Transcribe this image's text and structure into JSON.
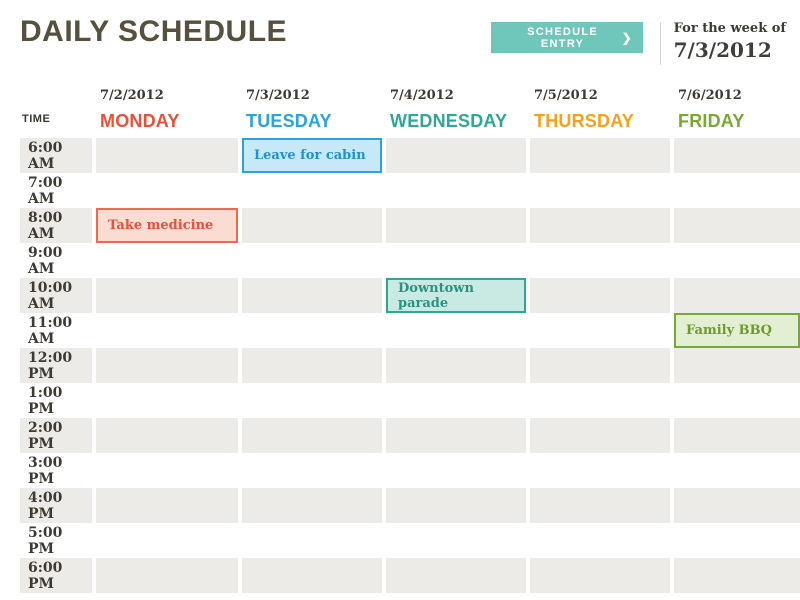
{
  "header": {
    "title": "DAILY SCHEDULE",
    "schedule_entry_button": "SCHEDULE ENTRY",
    "button_chevron": "❯",
    "week_of_label": "For the week of",
    "week_of_date": "7/3/2012"
  },
  "table": {
    "time_column_header": "TIME",
    "days": [
      {
        "date": "7/2/2012",
        "name": "MONDAY",
        "color": "#e8503a"
      },
      {
        "date": "7/3/2012",
        "name": "TUESDAY",
        "color": "#28a4de"
      },
      {
        "date": "7/4/2012",
        "name": "WEDNESDAY",
        "color": "#2ea795"
      },
      {
        "date": "7/5/2012",
        "name": "THURSDAY",
        "color": "#f9a01b"
      },
      {
        "date": "7/6/2012",
        "name": "FRIDAY",
        "color": "#77a933"
      }
    ],
    "times": [
      "6:00 AM",
      "7:00 AM",
      "8:00 AM",
      "9:00 AM",
      "10:00 AM",
      "11:00 AM",
      "12:00 PM",
      "1:00 PM",
      "2:00 PM",
      "3:00 PM",
      "4:00 PM",
      "5:00 PM",
      "6:00 PM"
    ],
    "events": [
      {
        "title": "Leave for cabin",
        "day": "TUESDAY",
        "time": "6:00 AM",
        "background": "#c6e8f7",
        "border": "#2da2dc",
        "text": "#1f93ce"
      },
      {
        "title": "Take medicine",
        "day": "MONDAY",
        "time": "8:00 AM",
        "background": "#fbdcd3",
        "border": "#ed6a50",
        "text": "#e8503a"
      },
      {
        "title": "Downtown parade",
        "day": "WEDNESDAY",
        "time": "10:00 AM",
        "background": "#c9eae3",
        "border": "#2ea795",
        "text": "#2a9184"
      },
      {
        "title": "Family BBQ",
        "day": "FRIDAY",
        "time": "11:00 AM",
        "background": "#e3efd2",
        "border": "#77a933",
        "text": "#6d9c2c"
      }
    ]
  },
  "colors": {
    "title_text": "#57503f",
    "button_background": "#6fc6ba",
    "button_text": "#ffffff",
    "row_stripe": "#ecebe7",
    "label_text": "#3e3931",
    "divider": "#d9d7d4"
  }
}
